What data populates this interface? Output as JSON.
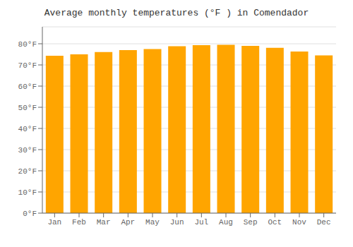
{
  "chart_data": {
    "type": "bar",
    "title": "Average monthly temperatures (°F ) in Comendador",
    "categories": [
      "Jan",
      "Feb",
      "Mar",
      "Apr",
      "May",
      "Jun",
      "Jul",
      "Aug",
      "Sep",
      "Oct",
      "Nov",
      "Dec"
    ],
    "values": [
      74.3,
      75.0,
      76.1,
      77.0,
      77.5,
      78.8,
      79.3,
      79.5,
      79.0,
      78.1,
      76.3,
      74.5
    ],
    "color": "#FFA500",
    "ylim": [
      0,
      88
    ],
    "yticks": [
      {
        "value": 0,
        "label": "0°F"
      },
      {
        "value": 10,
        "label": "10°F"
      },
      {
        "value": 20,
        "label": "20°F"
      },
      {
        "value": 30,
        "label": "30°F"
      },
      {
        "value": 40,
        "label": "40°F"
      },
      {
        "value": 50,
        "label": "50°F"
      },
      {
        "value": 60,
        "label": "60°F"
      },
      {
        "value": 70,
        "label": "70°F"
      },
      {
        "value": 80,
        "label": "80°F"
      }
    ],
    "grid": true
  }
}
